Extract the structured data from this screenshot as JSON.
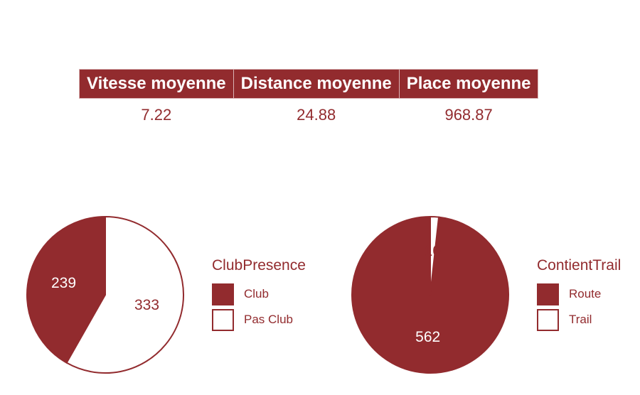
{
  "stats": {
    "headers": [
      "Vitesse moyenne",
      "Distance moyenne",
      "Place moyenne"
    ],
    "values": [
      "7.22",
      "24.88",
      "968.87"
    ]
  },
  "colors": {
    "accent": "#922b2e",
    "background": "#ffffff"
  },
  "chart_data": [
    {
      "type": "pie",
      "legend_title": "ClubPresence",
      "categories": [
        "Club",
        "Pas Club"
      ],
      "values": [
        239,
        333
      ],
      "slice_labels": [
        "239",
        "333"
      ],
      "fills": [
        "#922b2e",
        "#ffffff"
      ],
      "legend_position": "right"
    },
    {
      "type": "pie",
      "legend_title": "ContientTrail",
      "categories": [
        "Route",
        "Trail"
      ],
      "values": [
        562,
        10
      ],
      "slice_labels": [
        "562",
        "10"
      ],
      "fills": [
        "#922b2e",
        "#ffffff"
      ],
      "legend_position": "right"
    }
  ]
}
